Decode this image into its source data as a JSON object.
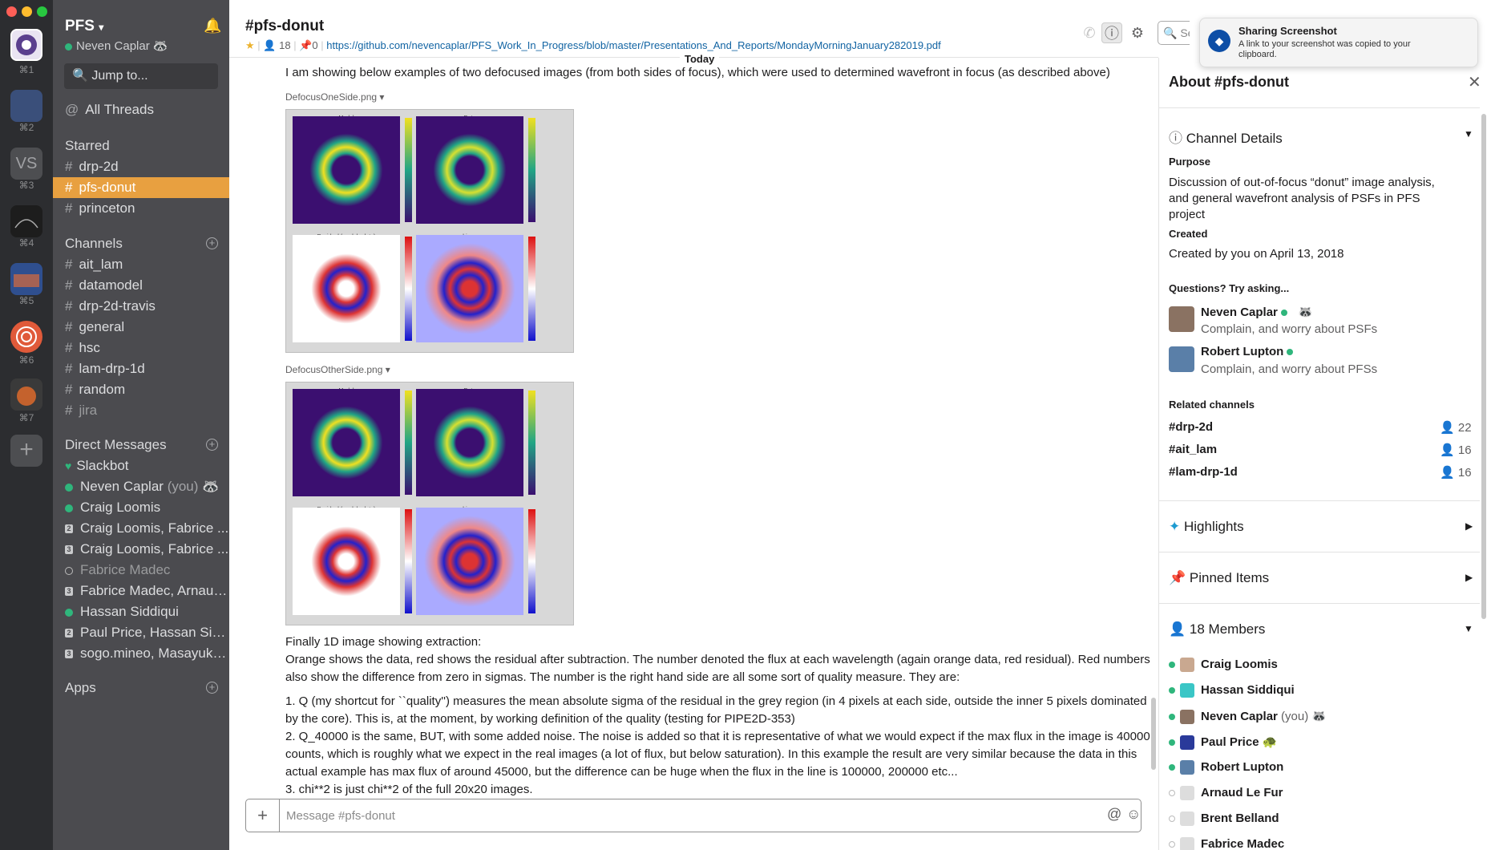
{
  "workspace": {
    "name": "PFS",
    "user": "Neven Caplar",
    "shortcuts": [
      "⌘1",
      "⌘2",
      "⌘3",
      "⌘4",
      "⌘5",
      "⌘6",
      "⌘7"
    ],
    "vs_label": "VS"
  },
  "sidebar": {
    "jump": "Jump to...",
    "all_threads": "All Threads",
    "starred_label": "Starred",
    "starred": [
      "drp-2d",
      "pfs-donut",
      "princeton"
    ],
    "channels_label": "Channels",
    "channels": [
      "ait_lam",
      "datamodel",
      "drp-2d-travis",
      "general",
      "hsc",
      "lam-drp-1d",
      "random",
      "jira"
    ],
    "dm_label": "Direct Messages",
    "dms": [
      {
        "name": "Slackbot",
        "status": "heart",
        "num": ""
      },
      {
        "name": "Neven Caplar",
        "suffix": "(you)",
        "status": "on",
        "num": ""
      },
      {
        "name": "Craig Loomis",
        "status": "on",
        "num": ""
      },
      {
        "name": "Craig Loomis, Fabrice ...",
        "status": "num",
        "num": "2"
      },
      {
        "name": "Craig Loomis, Fabrice ...",
        "status": "num",
        "num": "3"
      },
      {
        "name": "Fabrice Madec",
        "status": "off",
        "num": ""
      },
      {
        "name": "Fabrice Madec, Arnaud...",
        "status": "num",
        "num": "3"
      },
      {
        "name": "Hassan Siddiqui",
        "status": "on",
        "num": ""
      },
      {
        "name": "Paul Price, Hassan Sidd...",
        "status": "num",
        "num": "2"
      },
      {
        "name": "sogo.mineo, Masayuki ...",
        "status": "num",
        "num": "3"
      }
    ],
    "apps_label": "Apps"
  },
  "header": {
    "title": "#pfs-donut",
    "members": "18",
    "pins": "0",
    "link": "https://github.com/nevencaplar/PFS_Work_In_Progress/blob/master/Presentations_And_Reports/MondayMorningJanuary282019.pdf",
    "search_placeholder": "Sea",
    "today": "Today"
  },
  "messages": {
    "intro": "I am showing below examples of two defocused images (from both sides of focus), which were used to determined wavefront in focus (as described above)",
    "file1": "DefocusOneSide.png",
    "file2": "DefocusOtherSide.png",
    "panel_titles": [
      "Model",
      "Data",
      "Residual (model - data)",
      "chi map"
    ],
    "p1": "Finally 1D image showing extraction:",
    "p2": "Orange shows the data, red shows the residual after subtraction. The number denoted the flux at each wavelength (again orange data, red residual). Red numbers also show the difference from zero in sigmas. The number is the right hand side are all some sort of quality measure. They are:",
    "l1": "1. Q (my shortcut for ``quality'') measures the mean absolute sigma of the residual in the grey region (in 4 pixels at each side, outside the inner 5 pixels dominated by the core). This is, at the moment, by working definition of the quality (testing for PIPE2D-353)",
    "l2": "2. Q_40000 is the same, BUT, with some added noise. The noise is added so that it is representative of what we would expect if the max flux in the image is 40000 counts, which is roughly what we expect in the real images (a lot of flux, but below saturation). In this example the result are very similar because the data in this actual example has max flux of around 45000, but the difference can be huge when the flux in the line is 100000, 200000 etc...",
    "l3": "3. chi**2 is just chi**2 of the full 20x20 images."
  },
  "composer": {
    "placeholder": "Message #pfs-donut"
  },
  "toast": {
    "title": "Sharing Screenshot",
    "body": "A link to your screenshot was copied to your clipboard."
  },
  "about": {
    "title": "About #pfs-donut",
    "details": "Channel Details",
    "purpose_label": "Purpose",
    "purpose": "Discussion of out-of-focus “donut” image analysis, and general wavefront analysis of PSFs in PFS project",
    "created_label": "Created",
    "created": "Created by you on April 13, 2018",
    "questions_label": "Questions? Try asking...",
    "experts": [
      {
        "name": "Neven Caplar",
        "desc": "Complain, and worry about PSFs"
      },
      {
        "name": "Robert Lupton",
        "desc": "Complain, and worry about PFSs"
      }
    ],
    "related_label": "Related channels",
    "related": [
      {
        "name": "#drp-2d",
        "count": "22"
      },
      {
        "name": "#ait_lam",
        "count": "16"
      },
      {
        "name": "#lam-drp-1d",
        "count": "16"
      }
    ],
    "highlights": "Highlights",
    "pinned": "Pinned Items",
    "members_label": "18 Members",
    "members": [
      {
        "name": "Craig Loomis",
        "status": "on",
        "suffix": ""
      },
      {
        "name": "Hassan Siddiqui",
        "status": "on",
        "suffix": ""
      },
      {
        "name": "Neven Caplar",
        "status": "on",
        "suffix": "(you)"
      },
      {
        "name": "Paul Price",
        "status": "on",
        "suffix": ""
      },
      {
        "name": "Robert Lupton",
        "status": "on",
        "suffix": ""
      },
      {
        "name": "Arnaud Le Fur",
        "status": "off",
        "suffix": ""
      },
      {
        "name": "Brent Belland",
        "status": "off",
        "suffix": ""
      },
      {
        "name": "Fabrice Madec",
        "status": "off",
        "suffix": ""
      }
    ]
  },
  "colors": {
    "sidebar": "#4b4b4f",
    "rail": "#2c2d30",
    "active": "#e8a040",
    "link": "#1264a3",
    "online": "#2fb67c"
  }
}
